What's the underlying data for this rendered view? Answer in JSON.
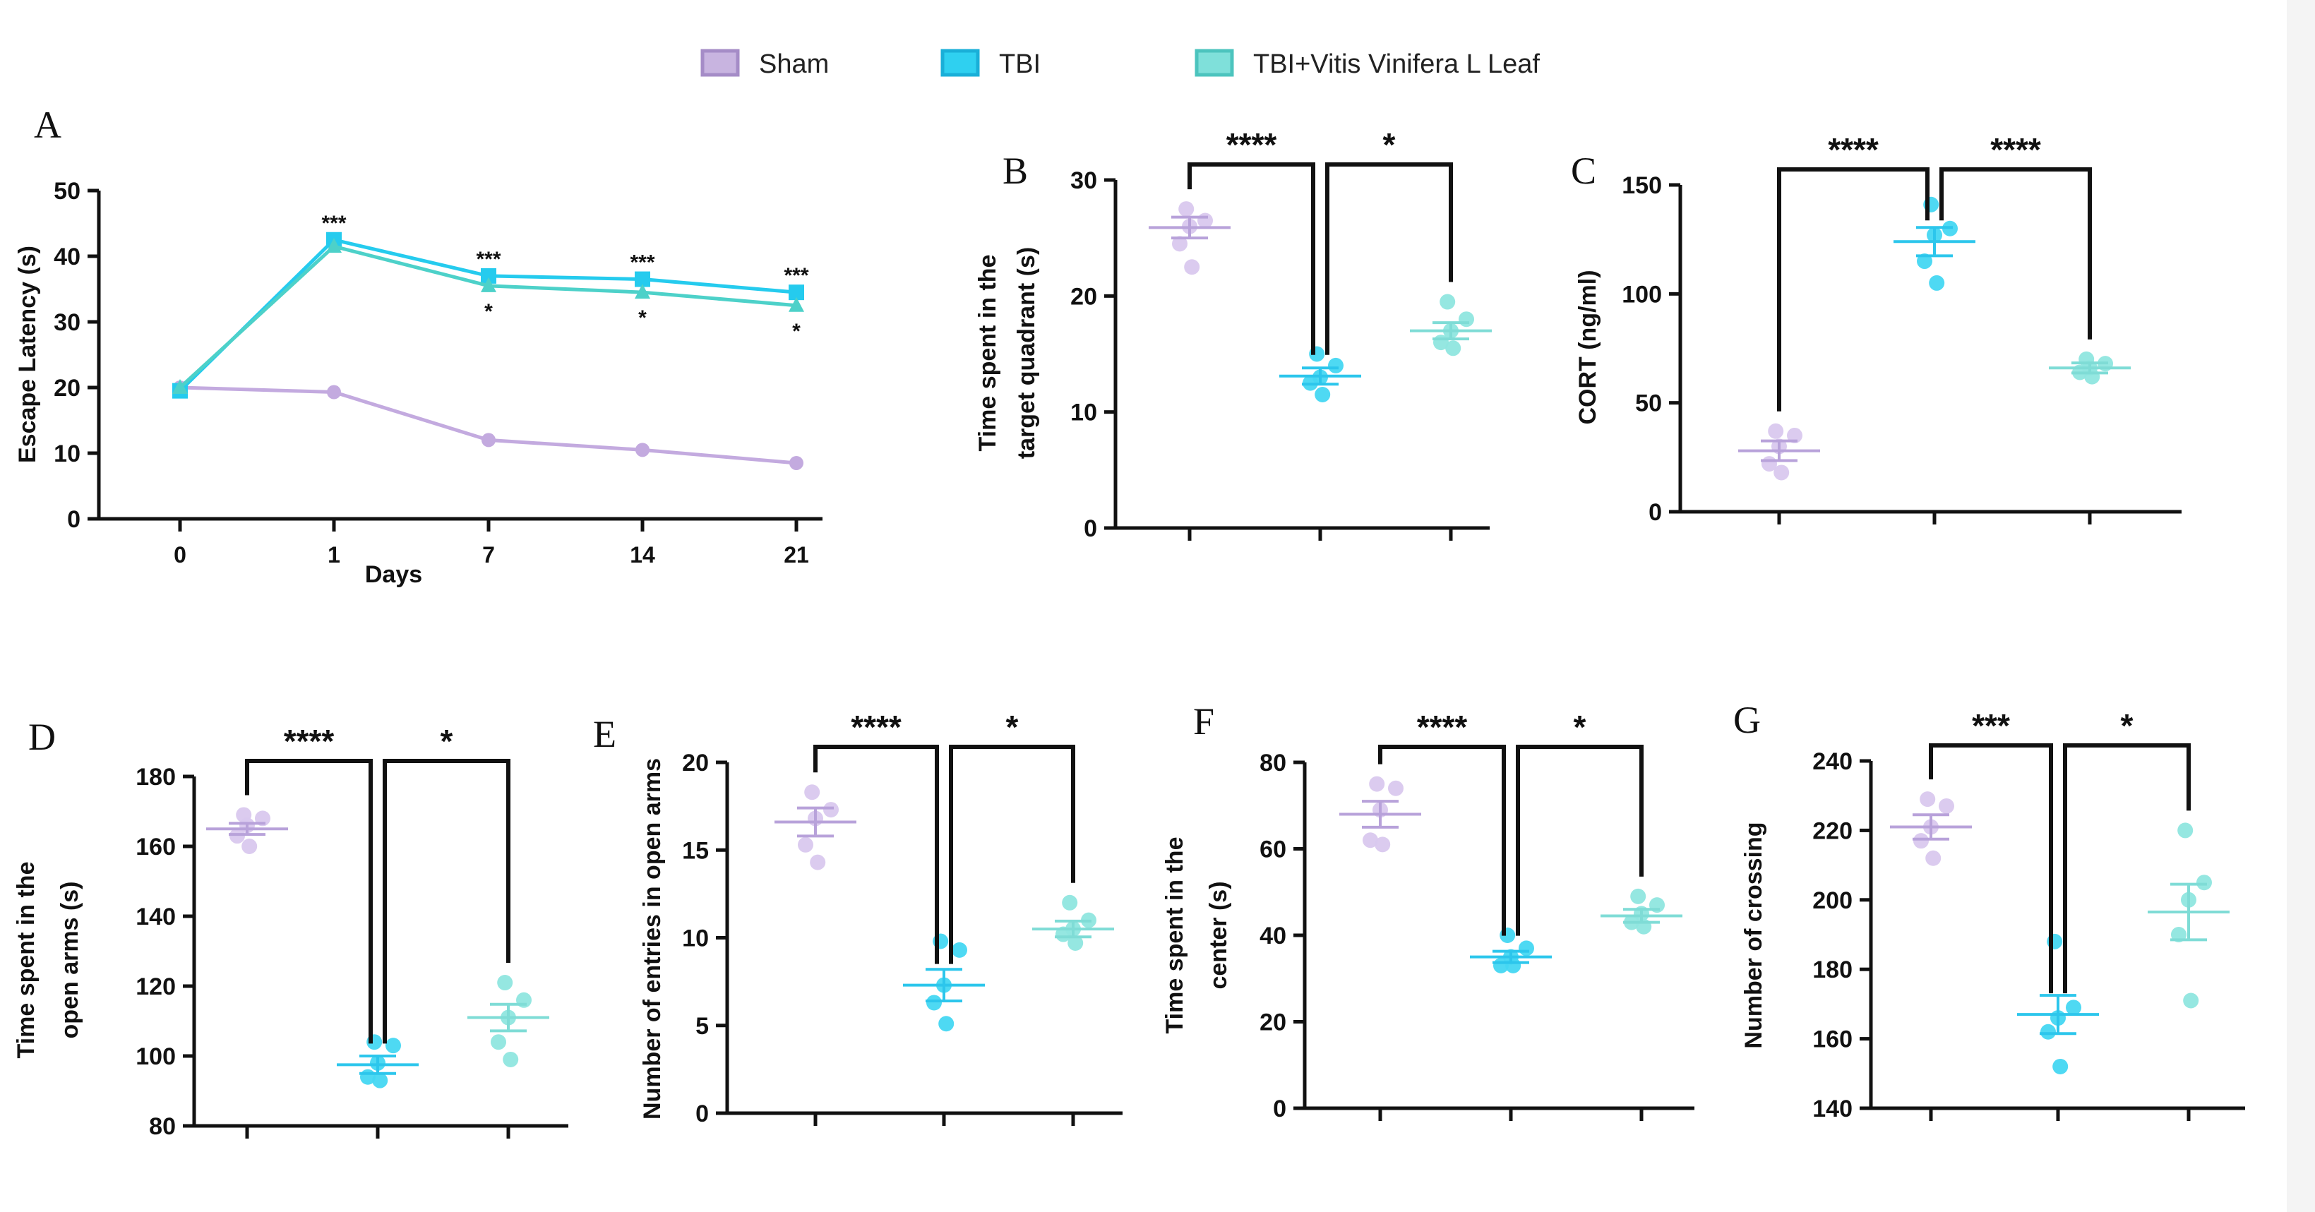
{
  "legend": [
    {
      "label": "Sham",
      "color": "#C8B4E0",
      "stroke": "#A58CC7"
    },
    {
      "label": "TBI",
      "color": "#2FD0F0",
      "stroke": "#1AAFD8"
    },
    {
      "label": "TBI+Vitis Vinifera L Leaf",
      "color": "#7FE0DA",
      "stroke": "#4CC4BE"
    }
  ],
  "chart_data": [
    {
      "panel": "A",
      "type": "line",
      "xlabel": "Days",
      "ylabel": "Escape Latency (s)",
      "categories": [
        "0",
        "1",
        "7",
        "14",
        "21"
      ],
      "ylim": [
        0,
        50
      ],
      "yticks": [
        "0",
        "10",
        "20",
        "30",
        "40",
        "50"
      ],
      "series": [
        {
          "name": "Sham",
          "values": [
            20,
            19.3,
            12,
            10.5,
            8.5
          ]
        },
        {
          "name": "TBI",
          "values": [
            19.5,
            42.5,
            37,
            36.5,
            34.5
          ]
        },
        {
          "name": "TBI+Vitis Vinifera L Leaf",
          "values": [
            20,
            41.5,
            35.5,
            34.5,
            32.5
          ]
        }
      ],
      "annotations_tbi": [
        "",
        "***",
        "***",
        "***",
        "***"
      ],
      "annotations_treated": [
        "",
        "",
        "*",
        "*",
        "*"
      ]
    },
    {
      "panel": "B",
      "type": "scatter",
      "ylabel": [
        "Time spent in the",
        "target quadrant (s)"
      ],
      "ylim": [
        0,
        30
      ],
      "yticks": [
        "0",
        "10",
        "20",
        "30"
      ],
      "groups": [
        {
          "name": "Sham",
          "points": [
            27.5,
            26.5,
            26,
            24.5,
            22.5
          ],
          "mean": 25.9,
          "sem": 0.9
        },
        {
          "name": "TBI",
          "points": [
            15,
            14,
            13,
            12.5,
            11.5
          ],
          "mean": 13.1,
          "sem": 0.7
        },
        {
          "name": "TBI+Vitis Vinifera L Leaf",
          "points": [
            19.5,
            18,
            17,
            16,
            15.5
          ],
          "mean": 17,
          "sem": 0.7
        }
      ],
      "significance": [
        "****",
        "*"
      ]
    },
    {
      "panel": "C",
      "type": "scatter",
      "ylabel": [
        "CORT (ng/ml)"
      ],
      "ylim": [
        0,
        150
      ],
      "yticks": [
        "0",
        "50",
        "100",
        "150"
      ],
      "groups": [
        {
          "name": "Sham",
          "points": [
            37,
            35,
            30,
            22,
            18
          ],
          "mean": 28,
          "sem": 4.5
        },
        {
          "name": "TBI",
          "points": [
            141,
            130,
            127,
            115,
            105
          ],
          "mean": 124,
          "sem": 6.5
        },
        {
          "name": "TBI+Vitis Vinifera L Leaf",
          "points": [
            70,
            68,
            66,
            64,
            62
          ],
          "mean": 66,
          "sem": 2.3
        }
      ],
      "significance": [
        "****",
        "****"
      ]
    },
    {
      "panel": "D",
      "type": "scatter",
      "ylabel": [
        "Time spent in the",
        "open arms (s)"
      ],
      "ylim": [
        80,
        180
      ],
      "yticks": [
        "80",
        "100",
        "120",
        "140",
        "160",
        "180"
      ],
      "groups": [
        {
          "name": "Sham",
          "points": [
            169,
            168,
            166,
            163,
            160
          ],
          "mean": 165,
          "sem": 1.6
        },
        {
          "name": "TBI",
          "points": [
            104,
            103,
            98,
            94,
            93
          ],
          "mean": 97.5,
          "sem": 2.5
        },
        {
          "name": "TBI+Vitis Vinifera L Leaf",
          "points": [
            121,
            116,
            111,
            104,
            99
          ],
          "mean": 111,
          "sem": 3.8
        }
      ],
      "significance": [
        "****",
        "*"
      ]
    },
    {
      "panel": "E",
      "type": "scatter",
      "ylabel": [
        "Number of entries in open arms"
      ],
      "ylim": [
        0,
        20
      ],
      "yticks": [
        "0",
        "5",
        "10",
        "15",
        "20"
      ],
      "groups": [
        {
          "name": "Sham",
          "points": [
            18.3,
            17.3,
            16.8,
            15.3,
            14.3
          ],
          "mean": 16.6,
          "sem": 0.8
        },
        {
          "name": "TBI",
          "points": [
            9.8,
            9.3,
            7.3,
            6.3,
            5.1
          ],
          "mean": 7.3,
          "sem": 0.9
        },
        {
          "name": "TBI+Vitis Vinifera L Leaf",
          "points": [
            12,
            11,
            10.5,
            10.2,
            9.7
          ],
          "mean": 10.5,
          "sem": 0.45
        }
      ],
      "significance": [
        "****",
        "*"
      ]
    },
    {
      "panel": "F",
      "type": "scatter",
      "ylabel": [
        "Time spent in the",
        "center (s)"
      ],
      "ylim": [
        0,
        80
      ],
      "yticks": [
        "0",
        "20",
        "40",
        "60",
        "80"
      ],
      "groups": [
        {
          "name": "Sham",
          "points": [
            75,
            74,
            69,
            62,
            61
          ],
          "mean": 68,
          "sem": 3
        },
        {
          "name": "TBI",
          "points": [
            40,
            37,
            35,
            33,
            33
          ],
          "mean": 35,
          "sem": 1.3
        },
        {
          "name": "TBI+Vitis Vinifera L Leaf",
          "points": [
            49,
            47,
            45,
            43,
            42
          ],
          "mean": 44.5,
          "sem": 1.5
        }
      ],
      "significance": [
        "****",
        "*"
      ]
    },
    {
      "panel": "G",
      "type": "scatter",
      "ylabel": [
        "Number of crossing"
      ],
      "ylim": [
        140,
        240
      ],
      "yticks": [
        "140",
        "160",
        "180",
        "200",
        "220",
        "240"
      ],
      "groups": [
        {
          "name": "Sham",
          "points": [
            229,
            227,
            221,
            217,
            212
          ],
          "mean": 221,
          "sem": 3.5
        },
        {
          "name": "TBI",
          "points": [
            188,
            169,
            166,
            162,
            152
          ],
          "mean": 167,
          "sem": 5.5
        },
        {
          "name": "TBI+Vitis Vinifera L Leaf",
          "points": [
            220,
            205,
            200,
            190,
            171
          ],
          "mean": 196.5,
          "sem": 8
        }
      ],
      "significance": [
        "***",
        "*"
      ]
    }
  ]
}
